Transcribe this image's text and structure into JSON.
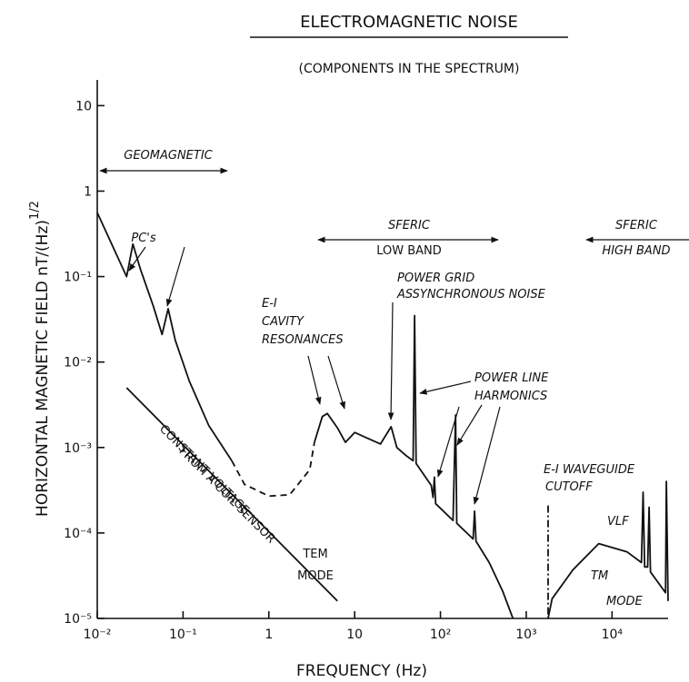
{
  "chart_data": {
    "type": "line",
    "title": "ELECTROMAGNETIC NOISE",
    "subtitle": "(COMPONENTS IN THE SPECTRUM)",
    "xlabel": "FREQUENCY (Hz)",
    "ylabel": "HORIZONTAL MAGNETIC FIELD nT/(Hz)",
    "ylabel_exponent": "1/2",
    "xscale": "log",
    "yscale": "log",
    "xlim": [
      0.01,
      45000
    ],
    "ylim": [
      1e-05,
      20
    ],
    "xticks": [
      {
        "value": 0.01,
        "label": "10⁻²"
      },
      {
        "value": 0.1,
        "label": "10⁻¹"
      },
      1,
      10,
      {
        "value": 100,
        "label": "10²"
      },
      {
        "value": 1000,
        "label": "10³"
      },
      {
        "value": 10000,
        "label": "10⁴"
      }
    ],
    "yticks": [
      {
        "value": 1e-05,
        "label": "10⁻⁵"
      },
      {
        "value": 0.0001,
        "label": "10⁻⁴"
      },
      {
        "value": 0.001,
        "label": "10⁻³"
      },
      {
        "value": 0.01,
        "label": "10⁻²"
      },
      {
        "value": 0.1,
        "label": "10⁻¹"
      },
      1,
      10
    ],
    "series": [
      {
        "color": "#111111",
        "dash": "none",
        "x": [
          0.01,
          0.016,
          0.022,
          0.026,
          0.032,
          0.045,
          0.057,
          0.067,
          0.081,
          0.118,
          0.2,
          0.37,
          null,
          3.4,
          4.2,
          4.8,
          6.3,
          7.8,
          10,
          13.7,
          20,
          26.6,
          31,
          40,
          48,
          50,
          52,
          78,
          82,
          85,
          88,
          140,
          150,
          155,
          240,
          250,
          260,
          370,
          530,
          700,
          null,
          1800,
          2000,
          3500,
          7000,
          15000,
          22000,
          23000,
          24000,
          26000,
          27000,
          28000,
          42000,
          43000,
          45000
        ],
        "values": [
          0.56,
          0.2,
          0.1,
          0.24,
          0.12,
          0.045,
          0.021,
          0.042,
          0.018,
          0.006,
          0.0018,
          0.0007,
          null,
          0.00115,
          0.0023,
          0.0025,
          0.0017,
          0.00115,
          0.0015,
          0.0013,
          0.0011,
          0.00175,
          0.001,
          0.0008,
          0.0007,
          0.035,
          0.00065,
          0.00036,
          0.00026,
          0.00045,
          0.00022,
          0.00014,
          0.0024,
          0.00013,
          8.5e-05,
          0.00018,
          8e-05,
          4.5e-05,
          2.1e-05,
          1e-05,
          null,
          1e-05,
          1.7e-05,
          3.7e-05,
          7.5e-05,
          6e-05,
          4.5e-05,
          0.0003,
          4e-05,
          4e-05,
          0.0002,
          3.5e-05,
          2e-05,
          0.0004,
          1.6e-05
        ]
      },
      {
        "color": "#111111",
        "dash": "dashed",
        "x": [
          0.37,
          0.52,
          1,
          1.75,
          3,
          3.4
        ],
        "values": [
          0.0007,
          0.00037,
          0.00027,
          0.00028,
          0.00055,
          0.00115
        ]
      },
      {
        "color": "#111111",
        "dash": "dashdot",
        "x": [
          1800,
          1800
        ],
        "values": [
          0.00021,
          1e-05
        ]
      },
      {
        "color": "#111111",
        "dash": "none",
        "x": [
          0.022,
          6.3
        ],
        "values": [
          0.005,
          1.6e-05
        ]
      }
    ],
    "annotations": [
      "GEOMAGNETIC",
      "PC's",
      "SFERIC",
      "LOW BAND",
      "SFERIC",
      "HIGH BAND",
      "POWER GRID",
      "ASSYNCHRONOUS NOISE",
      "E-I",
      "CAVITY",
      "RESONANCES",
      "POWER LINE",
      "HARMONICS",
      "CONSTANT VOLTAGE",
      "FROM A COIL SENSOR",
      "TEM",
      "MODE",
      "E-I WAVEGUIDE",
      "CUTOFF",
      "VLF",
      "TM",
      "MODE"
    ]
  }
}
